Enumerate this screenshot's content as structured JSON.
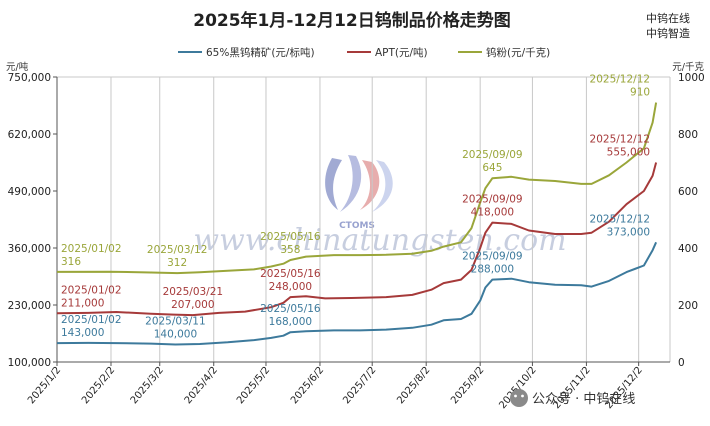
{
  "chart_data": {
    "type": "line",
    "title": "2025年1月-12月12日钨制品价格走势图",
    "logo": [
      "中钨在线",
      "中钨智造"
    ],
    "left_unit": "元/吨",
    "right_unit": "元/千克",
    "left_ylim": [
      100000,
      750000
    ],
    "left_ticks": [
      "100,000",
      "230,000",
      "360,000",
      "490,000",
      "620,000",
      "750,000"
    ],
    "right_ylim": [
      0,
      1000
    ],
    "right_ticks": [
      "0",
      "200",
      "400",
      "600",
      "800",
      "1000"
    ],
    "x_ticks": [
      "2025/1/2",
      "2025/2/2",
      "2025/3/2",
      "2025/4/2",
      "2025/5/2",
      "2025/6/2",
      "2025/7/2",
      "2025/8/2",
      "2025/9/2",
      "2025/10/2",
      "2025/11/2",
      "2025/12/2"
    ],
    "legend_position": "top",
    "grid": "vertical",
    "watermark": "www.chinatungsten.com",
    "watermark_logo": "CTOMS",
    "footer": "公众号 · 中钨在线",
    "series": [
      {
        "name": "65%黑钨精矿(元/标吨)",
        "color": "#3d7a9c",
        "axis": "left",
        "points": [
          [
            "2025/01/02",
            143000
          ],
          [
            "2025/01/20",
            143500
          ],
          [
            "2025/02/05",
            143000
          ],
          [
            "2025/02/25",
            142000
          ],
          [
            "2025/03/11",
            140000
          ],
          [
            "2025/03/25",
            141000
          ],
          [
            "2025/04/10",
            145000
          ],
          [
            "2025/04/25",
            150000
          ],
          [
            "2025/05/05",
            155000
          ],
          [
            "2025/05/12",
            160000
          ],
          [
            "2025/05/16",
            168000
          ],
          [
            "2025/05/25",
            170000
          ],
          [
            "2025/06/10",
            172000
          ],
          [
            "2025/06/25",
            172000
          ],
          [
            "2025/07/10",
            174000
          ],
          [
            "2025/07/25",
            178000
          ],
          [
            "2025/08/05",
            185000
          ],
          [
            "2025/08/12",
            195000
          ],
          [
            "2025/08/22",
            198000
          ],
          [
            "2025/08/28",
            210000
          ],
          [
            "2025/09/02",
            240000
          ],
          [
            "2025/09/05",
            270000
          ],
          [
            "2025/09/09",
            288000
          ],
          [
            "2025/09/20",
            290000
          ],
          [
            "2025/09/30",
            282000
          ],
          [
            "2025/10/15",
            276000
          ],
          [
            "2025/10/30",
            275000
          ],
          [
            "2025/11/05",
            272000
          ],
          [
            "2025/11/15",
            285000
          ],
          [
            "2025/11/25",
            305000
          ],
          [
            "2025/12/05",
            320000
          ],
          [
            "2025/12/10",
            355000
          ],
          [
            "2025/12/12",
            373000
          ]
        ],
        "labels": [
          {
            "date": "2025/01/02",
            "text": "143,000"
          },
          {
            "date": "2025/03/11",
            "text": "140,000"
          },
          {
            "date": "2025/05/16",
            "text": "168,000"
          },
          {
            "date": "2025/09/09",
            "text": "288,000"
          },
          {
            "date": "2025/12/12",
            "text": "373,000"
          }
        ]
      },
      {
        "name": "APT(元/吨)",
        "color": "#a63a3a",
        "axis": "left",
        "points": [
          [
            "2025/01/02",
            211000
          ],
          [
            "2025/01/20",
            212000
          ],
          [
            "2025/02/05",
            214000
          ],
          [
            "2025/02/25",
            210000
          ],
          [
            "2025/03/10",
            208000
          ],
          [
            "2025/03/21",
            207000
          ],
          [
            "2025/04/05",
            212000
          ],
          [
            "2025/04/20",
            215000
          ],
          [
            "2025/05/05",
            225000
          ],
          [
            "2025/05/12",
            235000
          ],
          [
            "2025/05/16",
            248000
          ],
          [
            "2025/05/25",
            250000
          ],
          [
            "2025/06/05",
            245000
          ],
          [
            "2025/06/20",
            246000
          ],
          [
            "2025/07/10",
            248000
          ],
          [
            "2025/07/25",
            253000
          ],
          [
            "2025/08/05",
            265000
          ],
          [
            "2025/08/12",
            280000
          ],
          [
            "2025/08/22",
            288000
          ],
          [
            "2025/08/28",
            310000
          ],
          [
            "2025/09/02",
            360000
          ],
          [
            "2025/09/05",
            395000
          ],
          [
            "2025/09/09",
            418000
          ],
          [
            "2025/09/20",
            415000
          ],
          [
            "2025/09/30",
            400000
          ],
          [
            "2025/10/15",
            392000
          ],
          [
            "2025/10/30",
            392000
          ],
          [
            "2025/11/05",
            395000
          ],
          [
            "2025/11/15",
            420000
          ],
          [
            "2025/11/25",
            460000
          ],
          [
            "2025/12/05",
            490000
          ],
          [
            "2025/12/10",
            525000
          ],
          [
            "2025/12/12",
            555000
          ]
        ],
        "labels": [
          {
            "date": "2025/01/02",
            "text": "211,000"
          },
          {
            "date": "2025/03/21",
            "text": "207,000"
          },
          {
            "date": "2025/05/16",
            "text": "248,000"
          },
          {
            "date": "2025/09/09",
            "text": "418,000"
          },
          {
            "date": "2025/12/12",
            "text": "555,000"
          }
        ]
      },
      {
        "name": "钨粉(元/千克)",
        "color": "#9aa63a",
        "axis": "right",
        "points": [
          [
            "2025/01/02",
            316
          ],
          [
            "2025/02/01",
            317
          ],
          [
            "2025/02/25",
            314
          ],
          [
            "2025/03/12",
            312
          ],
          [
            "2025/03/25",
            315
          ],
          [
            "2025/04/10",
            320
          ],
          [
            "2025/04/25",
            325
          ],
          [
            "2025/05/05",
            335
          ],
          [
            "2025/05/12",
            345
          ],
          [
            "2025/05/16",
            358
          ],
          [
            "2025/05/25",
            370
          ],
          [
            "2025/06/10",
            375
          ],
          [
            "2025/06/25",
            375
          ],
          [
            "2025/07/10",
            376
          ],
          [
            "2025/07/25",
            380
          ],
          [
            "2025/08/05",
            390
          ],
          [
            "2025/08/12",
            405
          ],
          [
            "2025/08/22",
            420
          ],
          [
            "2025/08/28",
            470
          ],
          [
            "2025/09/02",
            560
          ],
          [
            "2025/09/05",
            610
          ],
          [
            "2025/09/09",
            645
          ],
          [
            "2025/09/20",
            650
          ],
          [
            "2025/09/30",
            640
          ],
          [
            "2025/10/15",
            635
          ],
          [
            "2025/10/30",
            625
          ],
          [
            "2025/11/05",
            625
          ],
          [
            "2025/11/15",
            655
          ],
          [
            "2025/11/25",
            700
          ],
          [
            "2025/12/05",
            750
          ],
          [
            "2025/12/10",
            840
          ],
          [
            "2025/12/12",
            910
          ]
        ],
        "labels": [
          {
            "date": "2025/01/02",
            "text": "316"
          },
          {
            "date": "2025/03/12",
            "text": "312"
          },
          {
            "date": "2025/05/16",
            "text": "358"
          },
          {
            "date": "2025/09/09",
            "text": "645"
          },
          {
            "date": "2025/12/12",
            "text": "910"
          }
        ]
      }
    ]
  }
}
